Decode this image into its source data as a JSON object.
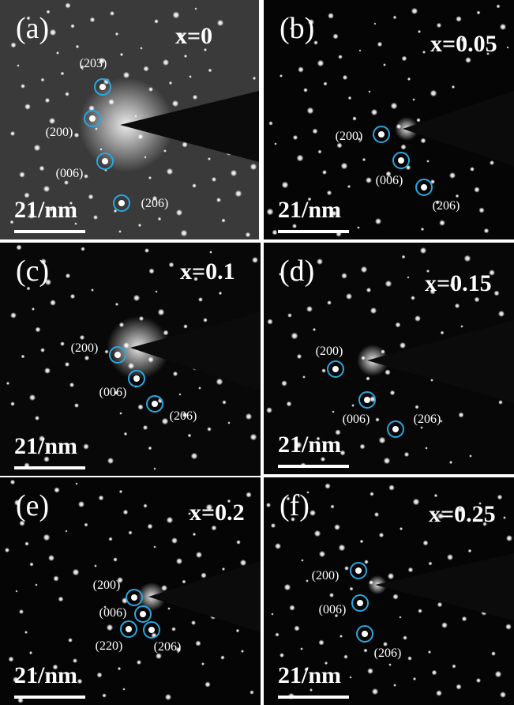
{
  "panels": [
    {
      "label": "(a)",
      "composition": "x=0",
      "scale_bar": "21/nm",
      "annotations": [
        "(203)",
        "(200)",
        "(006)",
        "(206)"
      ]
    },
    {
      "label": "(b)",
      "composition": "x=0.05",
      "scale_bar": "21/nm",
      "annotations": [
        "(200)",
        "(006)",
        "(206)"
      ]
    },
    {
      "label": "(c)",
      "composition": "x=0.1",
      "scale_bar": "21/nm",
      "annotations": [
        "(200)",
        "(006)",
        "(206)"
      ]
    },
    {
      "label": "(d)",
      "composition": "x=0.15",
      "scale_bar": "21/nm",
      "annotations": [
        "(200)",
        "(006)",
        "(206)"
      ]
    },
    {
      "label": "(e)",
      "composition": "x=0.2",
      "scale_bar": "21/nm",
      "annotations": [
        "(200)",
        "(006)",
        "(220)",
        "(206)"
      ]
    },
    {
      "label": "(f)",
      "composition": "x=0.25",
      "scale_bar": "21/nm",
      "annotations": [
        "(200)",
        "(006)",
        "(206)"
      ]
    }
  ]
}
